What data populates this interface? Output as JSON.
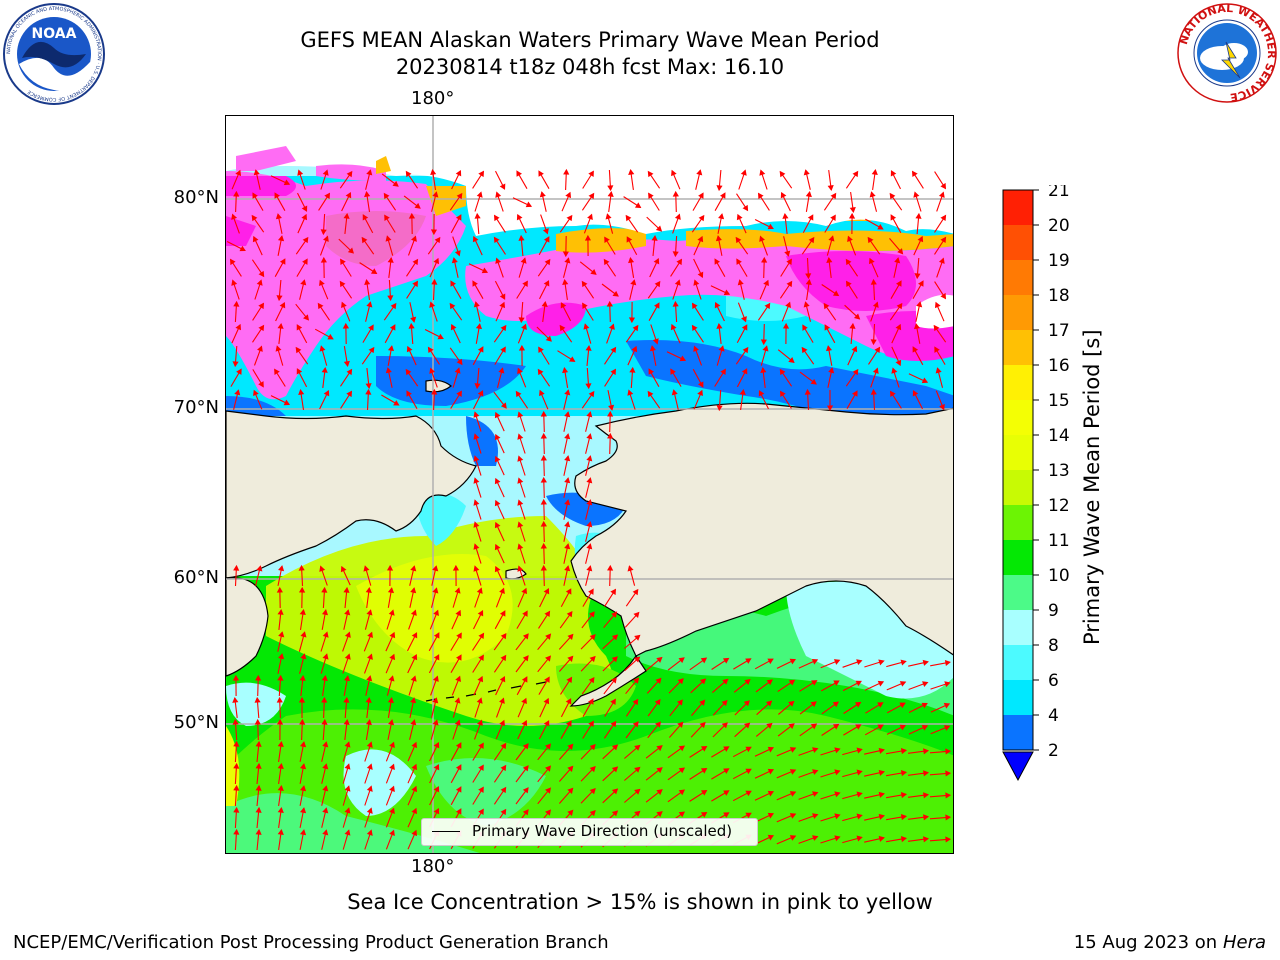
{
  "header": {
    "title_line1": "GEFS MEAN Alaskan Waters Primary Wave Mean Period",
    "title_line2": "20230814 t18z 048h fcst   Max: 16.10",
    "noaa_logo_text": "NOAA",
    "noaa_ring_text": "NATIONAL OCEANIC AND ATMOSPHERIC ADMINISTRATION · U.S. DEPARTMENT OF COMMERCE",
    "nws_ring_text": "NATIONAL WEATHER SERVICE"
  },
  "map": {
    "top_longitude_label": "180°",
    "bottom_longitude_label": "180°",
    "latitude_labels": [
      "80°N",
      "70°N",
      "60°N",
      "50°N"
    ],
    "legend_label": "Primary Wave Direction (unscaled)",
    "colors": {
      "land": "#efecdc",
      "coast": "#000000",
      "grid": "#b0b0b0",
      "arrow": "#ff0000"
    }
  },
  "colorbar": {
    "title": "Primary Wave Mean Period [s]",
    "ticks": [
      "2",
      "4",
      "6",
      "8",
      "9",
      "10",
      "11",
      "12",
      "13",
      "14",
      "15",
      "16",
      "17",
      "18",
      "19",
      "20",
      "21"
    ],
    "bins": [
      {
        "from": "2",
        "to": "4",
        "color": "#0a74ff"
      },
      {
        "from": "4",
        "to": "6",
        "color": "#00e8ff"
      },
      {
        "from": "6",
        "to": "8",
        "color": "#4cfaff"
      },
      {
        "from": "8",
        "to": "9",
        "color": "#a8ffff"
      },
      {
        "from": "9",
        "to": "10",
        "color": "#4cfa88"
      },
      {
        "from": "10",
        "to": "11",
        "color": "#04e804"
      },
      {
        "from": "11",
        "to": "12",
        "color": "#6cf404"
      },
      {
        "from": "12",
        "to": "13",
        "color": "#c8fa04"
      },
      {
        "from": "13",
        "to": "14",
        "color": "#e8ff04"
      },
      {
        "from": "14",
        "to": "15",
        "color": "#f4ff04"
      },
      {
        "from": "15",
        "to": "16",
        "color": "#fff004"
      },
      {
        "from": "16",
        "to": "17",
        "color": "#ffc004"
      },
      {
        "from": "17",
        "to": "18",
        "color": "#ff9a04"
      },
      {
        "from": "18",
        "to": "19",
        "color": "#ff7a04"
      },
      {
        "from": "19",
        "to": "20",
        "color": "#ff5004"
      },
      {
        "from": "20",
        "to": "21",
        "color": "#ff2004"
      }
    ],
    "extend_color": "#0000ff"
  },
  "footer": {
    "subtitle": "Sea Ice Concentration > 15% is shown in pink to yellow",
    "credit": "NCEP/EMC/Verification Post Processing Product Generation Branch",
    "date": "15 Aug 2023 on",
    "system": "Hera"
  }
}
